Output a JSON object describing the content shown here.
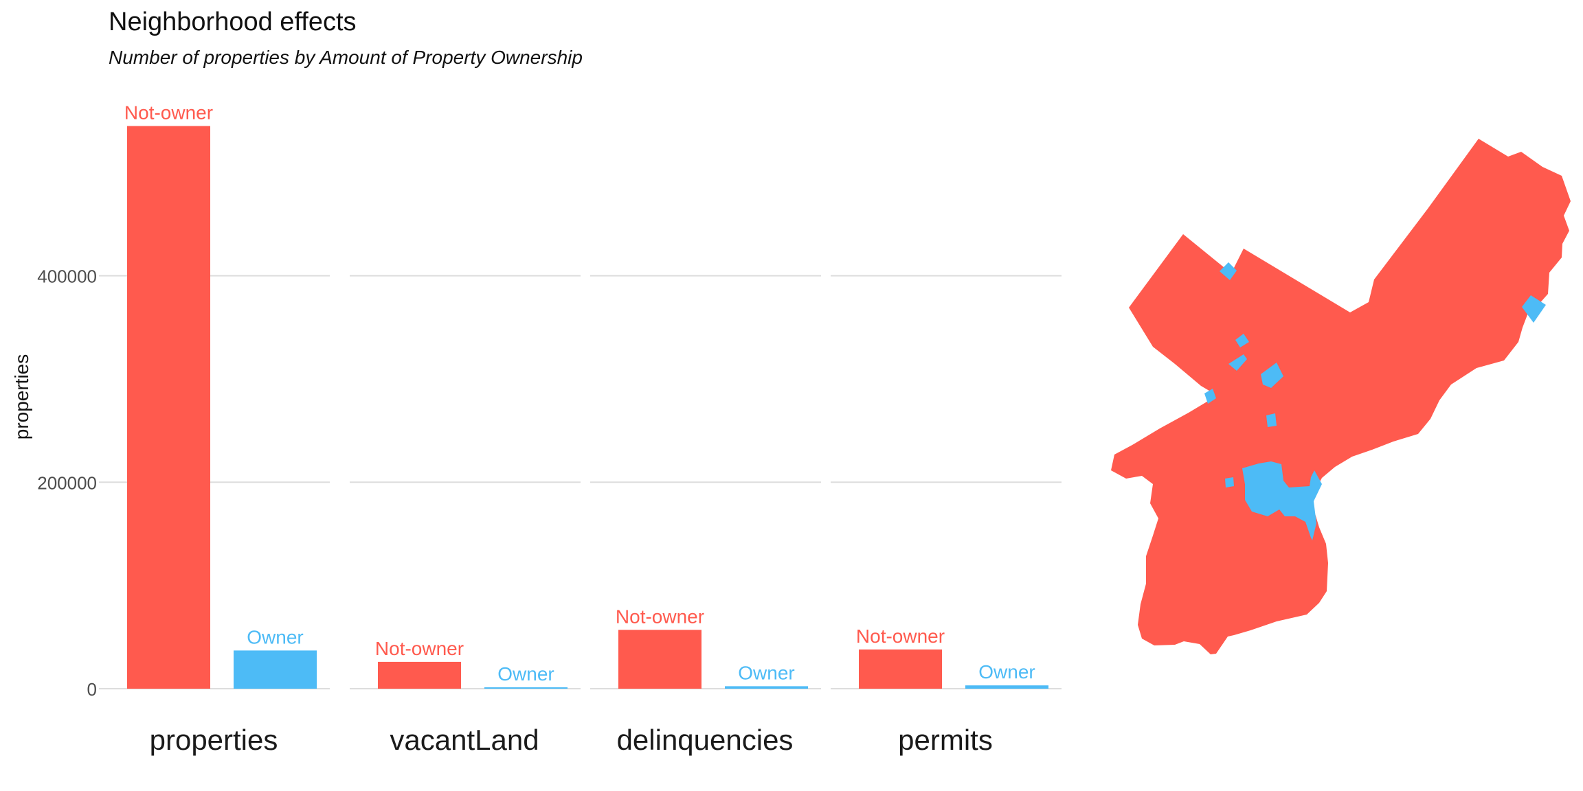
{
  "chart_data": {
    "type": "bar",
    "title": "Neighborhood effects",
    "subtitle": "Number of properties by Amount of Property Ownership",
    "ylabel": "properties",
    "ylim": [
      0,
      560000
    ],
    "yticks": [
      0,
      200000,
      400000
    ],
    "ytick_labels": [
      "0",
      "200000",
      "400000"
    ],
    "facets": [
      "properties",
      "vacantLand",
      "delinquencies",
      "permits"
    ],
    "groups": [
      "Not-owner",
      "Owner"
    ],
    "colors": {
      "Not-owner": "#FF5A4E",
      "Owner": "#4DBBF6"
    },
    "series": [
      {
        "name": "Not-owner",
        "values": [
          545000,
          26000,
          57000,
          38000
        ]
      },
      {
        "name": "Owner",
        "values": [
          37000,
          1200,
          2400,
          3200
        ]
      }
    ],
    "grid": true,
    "legend": "none",
    "map": {
      "colors": {
        "land": "#FF5A4E",
        "owner_areas": "#4DBBF6"
      }
    }
  }
}
